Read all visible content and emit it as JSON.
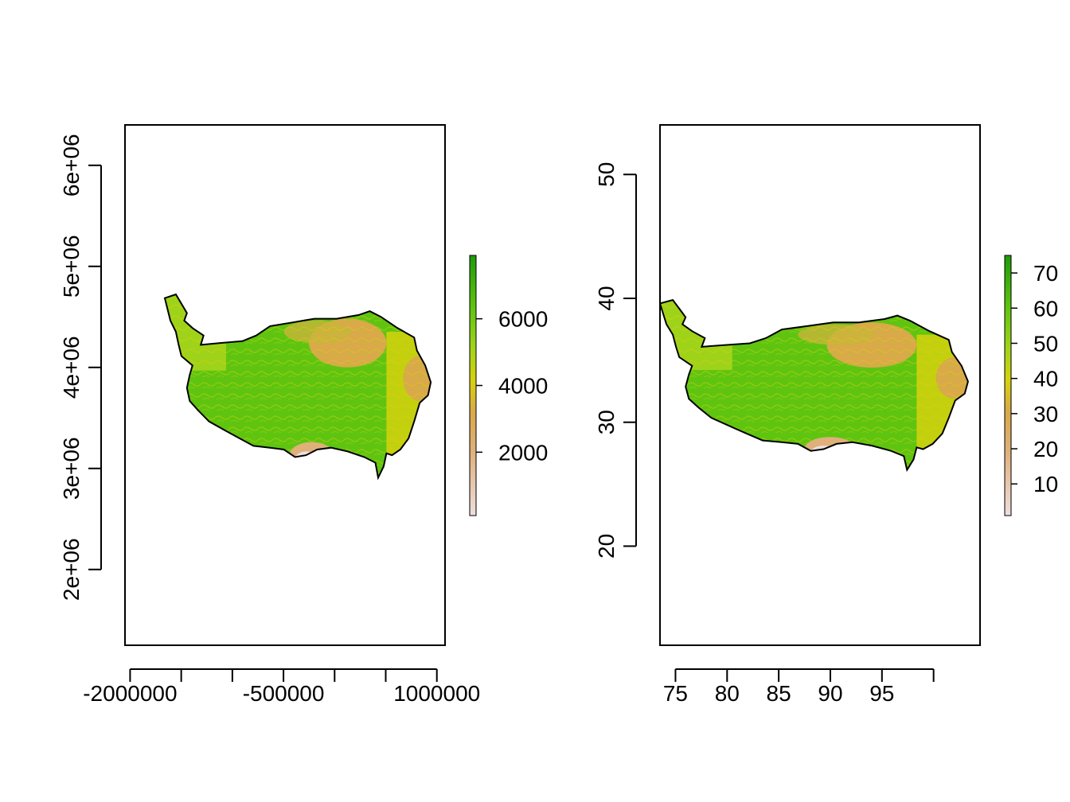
{
  "colors": {
    "low": "#eedede",
    "mid_low": "#dfb07a",
    "tan": "#d9a94a",
    "yellow": "#d6d20e",
    "light_green": "#9fd31a",
    "green": "#5fc410",
    "dark_green": "#1e9a0a",
    "border": "#000000"
  },
  "panels": [
    {
      "name": "projected",
      "x_ticks": [
        {
          "value": -2000000,
          "label": "-2000000"
        },
        {
          "value": -1500000,
          "label": ""
        },
        {
          "value": -1000000,
          "label": ""
        },
        {
          "value": -500000,
          "label": "-500000"
        },
        {
          "value": 0,
          "label": ""
        },
        {
          "value": 500000,
          "label": ""
        },
        {
          "value": 1000000,
          "label": "1000000"
        }
      ],
      "y_ticks": [
        {
          "value": 2000000,
          "label": "2e+06"
        },
        {
          "value": 3000000,
          "label": "3e+06"
        },
        {
          "value": 4000000,
          "label": "4e+06"
        },
        {
          "value": 5000000,
          "label": "5e+06"
        },
        {
          "value": 6000000,
          "label": "6e+06"
        }
      ],
      "x_range": [
        -2050000,
        1080000
      ],
      "y_range": [
        1250000,
        6400000
      ],
      "legend_ticks": [
        "2000",
        "4000",
        "6000"
      ],
      "legend_values": [
        2000,
        4000,
        6000
      ],
      "legend_range": [
        100,
        7900
      ]
    },
    {
      "name": "geographic",
      "x_ticks": [
        {
          "value": 75,
          "label": "75"
        },
        {
          "value": 80,
          "label": "80"
        },
        {
          "value": 85,
          "label": "85"
        },
        {
          "value": 90,
          "label": "90"
        },
        {
          "value": 95,
          "label": "95"
        },
        {
          "value": 100,
          "label": ""
        }
      ],
      "y_ticks": [
        {
          "value": 20,
          "label": "20"
        },
        {
          "value": 30,
          "label": "30"
        },
        {
          "value": 40,
          "label": "40"
        },
        {
          "value": 50,
          "label": "50"
        }
      ],
      "x_range": [
        73.5,
        104.5
      ],
      "y_range": [
        12,
        54
      ],
      "legend_ticks": [
        "10",
        "20",
        "30",
        "40",
        "50",
        "60",
        "70"
      ],
      "legend_values": [
        10,
        20,
        30,
        40,
        50,
        60,
        70
      ],
      "legend_range": [
        1,
        75
      ]
    }
  ]
}
